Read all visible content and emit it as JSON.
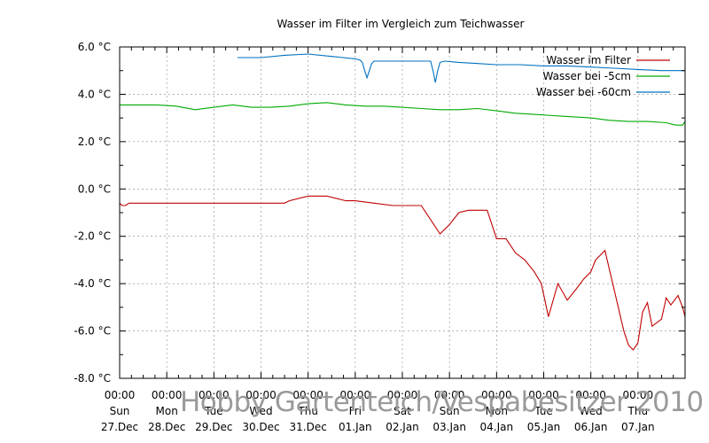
{
  "chart_data": {
    "type": "line",
    "title": "Wasser im Filter im Vergleich zum Teichwasser",
    "y_unit": "°C",
    "ylim": [
      -8.0,
      6.0
    ],
    "y_ticks": [
      "6.0 °C",
      "4.0 °C",
      "2.0 °C",
      "0.0 °C",
      "-2.0 °C",
      "-4.0 °C",
      "-6.0 °C",
      "-8.0 °C"
    ],
    "x_range_days": [
      0,
      12
    ],
    "x_ticks": [
      {
        "time": "00:00",
        "weekday": "Sun",
        "date": "27.Dec"
      },
      {
        "time": "00:00",
        "weekday": "Mon",
        "date": "28.Dec"
      },
      {
        "time": "00:00",
        "weekday": "Tue",
        "date": "29.Dec"
      },
      {
        "time": "00:00",
        "weekday": "Wed",
        "date": "30.Dec"
      },
      {
        "time": "00:00",
        "weekday": "Thu",
        "date": "31.Dec"
      },
      {
        "time": "00:00",
        "weekday": "Fri",
        "date": "01.Jan"
      },
      {
        "time": "00:00",
        "weekday": "Sat",
        "date": "02.Jan"
      },
      {
        "time": "00:00",
        "weekday": "Sun",
        "date": "03.Jan"
      },
      {
        "time": "00:00",
        "weekday": "Mon",
        "date": "04.Jan"
      },
      {
        "time": "00:00",
        "weekday": "Tue",
        "date": "05.Jan"
      },
      {
        "time": "00:00",
        "weekday": "Wed",
        "date": "06.Jan"
      },
      {
        "time": "00:00",
        "weekday": "Thu",
        "date": "07.Jan"
      }
    ],
    "grid": true,
    "legend_position": "top-right",
    "series": [
      {
        "name": "Wasser im Filter",
        "color": "#c00000",
        "x": [
          0,
          0.05,
          0.12,
          0.2,
          1.0,
          2.0,
          3.0,
          3.5,
          3.6,
          4.0,
          4.2,
          4.4,
          4.8,
          5.0,
          5.4,
          5.8,
          6.0,
          6.4,
          6.8,
          7.0,
          7.2,
          7.4,
          7.6,
          7.8,
          8.0,
          8.2,
          8.4,
          8.6,
          8.8,
          8.95,
          9.1,
          9.3,
          9.5,
          9.7,
          9.85,
          10.0,
          10.1,
          10.3,
          10.5,
          10.7,
          10.8,
          10.9,
          11.0,
          11.1,
          11.2,
          11.3,
          11.5,
          11.6,
          11.7,
          11.85,
          11.95,
          12.0
        ],
        "values": [
          -0.6,
          -0.7,
          -0.7,
          -0.6,
          -0.6,
          -0.6,
          -0.6,
          -0.6,
          -0.5,
          -0.3,
          -0.3,
          -0.3,
          -0.5,
          -0.5,
          -0.6,
          -0.7,
          -0.7,
          -0.7,
          -1.9,
          -1.5,
          -1.0,
          -0.9,
          -0.9,
          -0.9,
          -2.1,
          -2.1,
          -2.7,
          -3.0,
          -3.5,
          -4.0,
          -5.4,
          -4.0,
          -4.7,
          -4.2,
          -3.8,
          -3.5,
          -3.0,
          -2.6,
          -4.3,
          -6.0,
          -6.6,
          -6.8,
          -6.5,
          -5.2,
          -4.8,
          -5.8,
          -5.5,
          -4.6,
          -4.9,
          -4.5,
          -5.0,
          -5.4
        ]
      },
      {
        "name": "Wasser bei -5cm",
        "color": "#00aa00",
        "x": [
          0,
          0.4,
          0.8,
          1.2,
          1.6,
          2.0,
          2.4,
          2.8,
          3.2,
          3.6,
          4.0,
          4.4,
          4.8,
          5.2,
          5.6,
          6.0,
          6.4,
          6.8,
          7.2,
          7.6,
          8.0,
          8.4,
          8.8,
          9.2,
          9.6,
          10.0,
          10.4,
          10.8,
          11.2,
          11.6,
          11.8,
          11.95,
          12.0
        ],
        "values": [
          3.55,
          3.55,
          3.55,
          3.5,
          3.35,
          3.45,
          3.55,
          3.45,
          3.45,
          3.5,
          3.6,
          3.65,
          3.55,
          3.5,
          3.5,
          3.45,
          3.4,
          3.35,
          3.35,
          3.4,
          3.3,
          3.2,
          3.15,
          3.1,
          3.05,
          3.0,
          2.9,
          2.85,
          2.85,
          2.8,
          2.7,
          2.7,
          2.85
        ]
      },
      {
        "name": "Wasser bei -60cm",
        "color": "#0070c0",
        "x": [
          2.5,
          3.0,
          3.5,
          4.0,
          4.5,
          5.0,
          5.1,
          5.15,
          5.2,
          5.25,
          5.3,
          5.35,
          5.4,
          5.5,
          6.0,
          6.4,
          6.6,
          6.65,
          6.7,
          6.75,
          6.8,
          6.9,
          7.2,
          7.6,
          8.0,
          8.5,
          9.0,
          9.5,
          10.0,
          10.5,
          11.0,
          11.5,
          12.0
        ],
        "values": [
          5.55,
          5.55,
          5.65,
          5.7,
          5.6,
          5.5,
          5.45,
          5.35,
          5.0,
          4.7,
          5.0,
          5.3,
          5.4,
          5.4,
          5.4,
          5.4,
          5.4,
          5.0,
          4.5,
          5.0,
          5.35,
          5.4,
          5.35,
          5.3,
          5.25,
          5.25,
          5.2,
          5.2,
          5.15,
          5.1,
          5.05,
          5.0,
          5.0
        ]
      }
    ]
  },
  "watermark": "Hobby Gartenteich/Vespabesitzer 2010"
}
